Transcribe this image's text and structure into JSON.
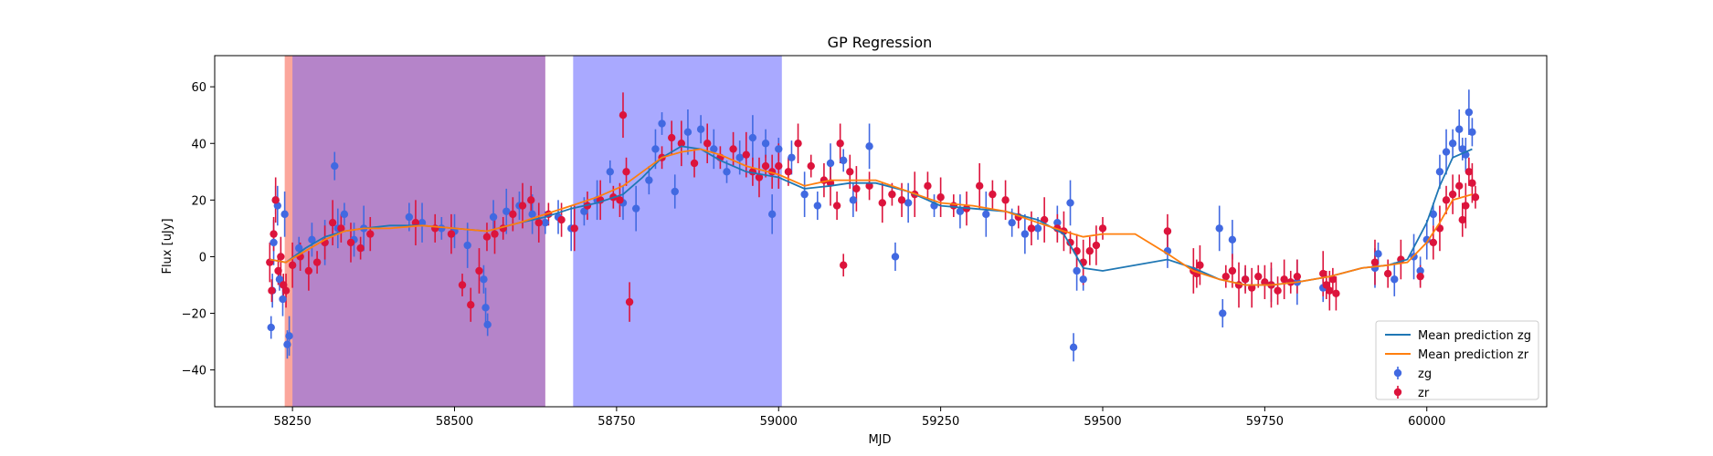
{
  "chart_data": {
    "type": "scatter",
    "title": "GP Regression",
    "xlabel": "MJD",
    "ylabel": "Flux [uJy]",
    "xlim": [
      58130,
      60185
    ],
    "ylim": [
      -53,
      71
    ],
    "xticks": [
      58250,
      58500,
      58750,
      59000,
      59250,
      59500,
      59750,
      60000
    ],
    "yticks": [
      -40,
      -20,
      0,
      20,
      40,
      60
    ],
    "grid": false,
    "legend_position": "lower-right",
    "shaded_regions": [
      {
        "x0": 58238,
        "x1": 58640,
        "color": "#fa8072",
        "opacity": 0.7
      },
      {
        "x0": 58250,
        "x1": 58640,
        "color": "#7b68ee",
        "opacity": 0.55
      },
      {
        "x0": 58683,
        "x1": 59005,
        "color": "#7b7bff",
        "opacity": 0.65
      }
    ],
    "lines": [
      {
        "name": "Mean prediction zg",
        "color": "#1f77b4",
        "x": [
          58215,
          58240,
          58270,
          58300,
          58330,
          58360,
          58400,
          58450,
          58500,
          58550,
          58600,
          58640,
          58680,
          58720,
          58760,
          58790,
          58820,
          58850,
          58880,
          58910,
          58950,
          59000,
          59040,
          59080,
          59110,
          59150,
          59200,
          59250,
          59300,
          59350,
          59400,
          59440,
          59470,
          59500,
          59550,
          59600,
          59640,
          59680,
          59720,
          59760,
          59800,
          59850,
          59900,
          59940,
          59970,
          60000,
          60020,
          60040,
          60070
        ],
        "y": [
          -1,
          -2,
          3,
          7,
          9,
          10,
          11,
          11,
          10,
          9,
          12,
          14,
          17,
          19,
          22,
          28,
          35,
          39,
          38,
          34,
          30,
          28,
          24,
          25,
          26,
          26,
          23,
          18,
          17,
          16,
          13,
          8,
          -4,
          -5,
          -3,
          -1,
          -4,
          -8,
          -10,
          -10,
          -9,
          -7,
          -4,
          -3,
          -1,
          12,
          25,
          35,
          38
        ]
      },
      {
        "name": "Mean prediction zr",
        "color": "#ff7f0e",
        "x": [
          58215,
          58240,
          58270,
          58300,
          58330,
          58360,
          58400,
          58450,
          58500,
          58550,
          58600,
          58640,
          58680,
          58720,
          58760,
          58790,
          58820,
          58850,
          58880,
          58910,
          58950,
          59000,
          59040,
          59080,
          59110,
          59150,
          59200,
          59250,
          59300,
          59350,
          59400,
          59440,
          59470,
          59500,
          59550,
          59600,
          59640,
          59680,
          59720,
          59760,
          59800,
          59850,
          59900,
          59940,
          59970,
          60000,
          60020,
          60040,
          60070
        ],
        "y": [
          -1,
          -2,
          2,
          6,
          9,
          10,
          10,
          11,
          10,
          9,
          12,
          15,
          18,
          21,
          25,
          30,
          35,
          37,
          38,
          36,
          32,
          29,
          25,
          27,
          27,
          27,
          23,
          19,
          18,
          16,
          12,
          9,
          7,
          8,
          8,
          1,
          -5,
          -8,
          -10,
          -10,
          -9,
          -7,
          -4,
          -3,
          -2,
          5,
          12,
          20,
          22
        ]
      }
    ],
    "series": [
      {
        "name": "zg",
        "color": "#4169e1",
        "x": [
          58217,
          58219,
          58221,
          58224,
          58227,
          58230,
          58235,
          58238,
          58242,
          58245,
          58260,
          58280,
          58300,
          58315,
          58320,
          58330,
          58345,
          58360,
          58430,
          58450,
          58480,
          58500,
          58520,
          58545,
          58548,
          58551,
          58560,
          58580,
          58600,
          58620,
          58640,
          58660,
          58680,
          58700,
          58720,
          58740,
          58760,
          58780,
          58800,
          58810,
          58820,
          58840,
          58860,
          58880,
          58900,
          58920,
          58940,
          58960,
          58980,
          58990,
          59000,
          59020,
          59040,
          59060,
          59080,
          59100,
          59115,
          59140,
          59180,
          59200,
          59240,
          59280,
          59320,
          59360,
          59380,
          59400,
          59430,
          59450,
          59455,
          59460,
          59470,
          59600,
          59680,
          59685,
          59700,
          59720,
          59760,
          59800,
          59840,
          59920,
          59925,
          59950,
          59980,
          59990,
          60000,
          60010,
          60020,
          60030,
          60040,
          60050,
          60055,
          60060,
          60065,
          60070
        ],
        "y": [
          -25,
          -12,
          5,
          20,
          18,
          -8,
          -15,
          15,
          -31,
          -28,
          3,
          6,
          5,
          32,
          10,
          15,
          6,
          10,
          14,
          12,
          10,
          9,
          4,
          -8,
          -18,
          -24,
          14,
          16,
          18,
          15,
          12,
          14,
          10,
          16,
          20,
          30,
          19,
          17,
          27,
          38,
          47,
          23,
          44,
          45,
          38,
          30,
          35,
          42,
          40,
          15,
          38,
          35,
          22,
          18,
          33,
          34,
          20,
          39,
          0,
          19,
          18,
          16,
          15,
          12,
          8,
          10,
          12,
          19,
          -32,
          -5,
          -8,
          2,
          10,
          -20,
          6,
          -8,
          -10,
          -9,
          -11,
          -4,
          1,
          -8,
          0,
          -5,
          6,
          15,
          30,
          37,
          40,
          45,
          38,
          36,
          51,
          44
        ]
      },
      {
        "name": "zr",
        "color": "#dc143c",
        "x": [
          58215,
          58218,
          58221,
          58224,
          58228,
          58232,
          58236,
          58240,
          58250,
          58262,
          58275,
          58288,
          58300,
          58312,
          58325,
          58340,
          58355,
          58370,
          58440,
          58470,
          58495,
          58512,
          58525,
          58538,
          58550,
          58562,
          58575,
          58590,
          58605,
          58618,
          58630,
          58645,
          58665,
          58685,
          58705,
          58725,
          58745,
          58755,
          58760,
          58765,
          58770,
          58820,
          58835,
          58850,
          58870,
          58890,
          58910,
          58930,
          58950,
          58960,
          58970,
          58980,
          58990,
          59000,
          59015,
          59030,
          59050,
          59070,
          59080,
          59090,
          59095,
          59100,
          59110,
          59120,
          59140,
          59160,
          59175,
          59190,
          59210,
          59230,
          59250,
          59270,
          59290,
          59310,
          59330,
          59350,
          59370,
          59390,
          59410,
          59430,
          59440,
          59450,
          59460,
          59470,
          59480,
          59490,
          59500,
          59600,
          59640,
          59645,
          59650,
          59690,
          59700,
          59710,
          59720,
          59730,
          59740,
          59750,
          59760,
          59770,
          59780,
          59790,
          59800,
          59840,
          59845,
          59850,
          59855,
          59860,
          59920,
          59940,
          59960,
          59990,
          60010,
          60020,
          60030,
          60040,
          60050,
          60055,
          60060,
          60065,
          60070,
          60075
        ],
        "y": [
          -2,
          -12,
          8,
          20,
          -5,
          0,
          -10,
          -12,
          -3,
          0,
          -5,
          -2,
          5,
          12,
          10,
          5,
          3,
          8,
          12,
          10,
          8,
          -10,
          -17,
          -5,
          7,
          8,
          10,
          15,
          18,
          20,
          12,
          15,
          13,
          10,
          18,
          20,
          21,
          20,
          50,
          30,
          -16,
          35,
          42,
          40,
          33,
          40,
          35,
          38,
          36,
          30,
          28,
          32,
          30,
          32,
          30,
          40,
          32,
          27,
          26,
          18,
          40,
          -3,
          30,
          24,
          25,
          19,
          22,
          20,
          22,
          25,
          21,
          18,
          17,
          25,
          22,
          20,
          14,
          10,
          13,
          10,
          9,
          5,
          2,
          -2,
          2,
          4,
          10,
          9,
          -5,
          -6,
          -3,
          -7,
          -5,
          -10,
          -8,
          -11,
          -7,
          -9,
          -10,
          -12,
          -8,
          -9,
          -7,
          -6,
          -10,
          -12,
          -8,
          -13,
          -2,
          -6,
          -1,
          -7,
          5,
          10,
          20,
          22,
          25,
          13,
          18,
          30,
          26,
          21
        ]
      }
    ]
  }
}
